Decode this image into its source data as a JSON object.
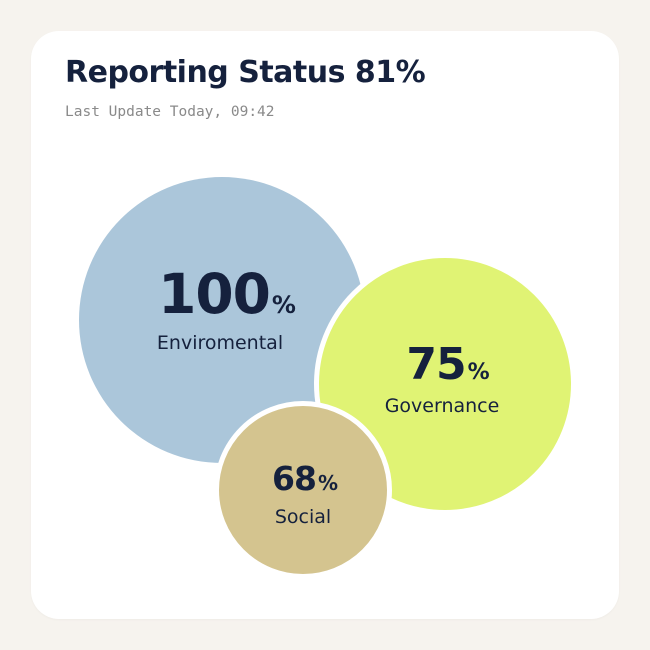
{
  "header": {
    "title": "Reporting Status 81%",
    "subtitle": "Last Update Today, 09:42"
  },
  "metrics": [
    {
      "label": "Enviromental",
      "value": "100",
      "unit": "%",
      "color": "#abc6da"
    },
    {
      "label": "Governance",
      "value": "75",
      "unit": "%",
      "color": "#e0f374"
    },
    {
      "label": "Social",
      "value": "68",
      "unit": "%",
      "color": "#d4c48f"
    }
  ]
}
